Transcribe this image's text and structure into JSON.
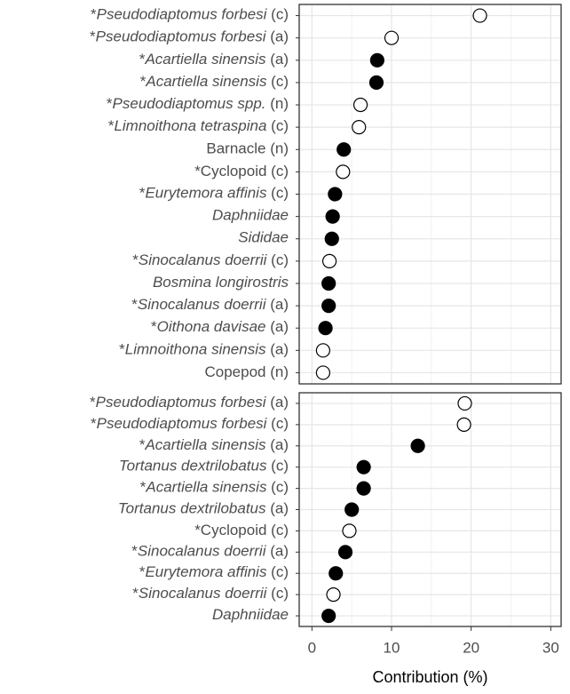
{
  "chart_data": [
    {
      "type": "dot",
      "categories": [
        "*Pseudodiaptomus forbesi (c)",
        "*Pseudodiaptomus forbesi (a)",
        "*Acartiella sinensis (a)",
        "*Acartiella sinensis (c)",
        "*Pseudodiaptomus spp. (n)",
        "*Limnoithona tetraspina (c)",
        "Barnacle (n)",
        "*Cyclopoid (c)",
        "*Eurytemora affinis (c)",
        "Daphniidae",
        "Sididae",
        "*Sinocalanus doerrii (c)",
        "Bosmina longirostris",
        "*Sinocalanus doerrii (a)",
        "*Oithona davisae (a)",
        "*Limnoithona sinensis (a)",
        "Copepod (n)"
      ],
      "italic": [
        true,
        true,
        true,
        true,
        true,
        true,
        false,
        false,
        true,
        true,
        true,
        true,
        true,
        true,
        true,
        true,
        false
      ],
      "values": [
        21.1,
        10.0,
        8.2,
        8.1,
        6.1,
        5.9,
        4.0,
        3.9,
        2.9,
        2.6,
        2.5,
        2.2,
        2.1,
        2.1,
        1.7,
        1.4,
        1.4
      ],
      "colors": [
        "#ffffff",
        "#ffffff",
        "#000000",
        "#000000",
        "#ffffff",
        "#ffffff",
        "#000000",
        "#ffffff",
        "#000000",
        "#000000",
        "#000000",
        "#ffffff",
        "#000000",
        "#000000",
        "#000000",
        "#ffffff",
        "#ffffff"
      ],
      "xlim": [
        -1.6,
        31.3
      ],
      "xticks": [
        0,
        10,
        20,
        30
      ],
      "grid": true
    },
    {
      "type": "dot",
      "categories": [
        "*Pseudodiaptomus forbesi (a)",
        "*Pseudodiaptomus forbesi (c)",
        "*Acartiella sinensis (a)",
        "Tortanus dextrilobatus (c)",
        "*Acartiella sinensis (c)",
        "Tortanus dextrilobatus (a)",
        "*Cyclopoid (c)",
        "*Sinocalanus doerrii (a)",
        "*Eurytemora affinis (c)",
        "*Sinocalanus doerrii (c)",
        "Daphniidae"
      ],
      "italic": [
        true,
        true,
        true,
        true,
        true,
        true,
        false,
        true,
        true,
        true,
        true
      ],
      "values": [
        19.2,
        19.1,
        13.3,
        6.5,
        6.5,
        5.0,
        4.7,
        4.2,
        3.0,
        2.7,
        2.1
      ],
      "colors": [
        "#ffffff",
        "#ffffff",
        "#000000",
        "#000000",
        "#000000",
        "#000000",
        "#ffffff",
        "#000000",
        "#000000",
        "#ffffff",
        "#000000"
      ],
      "xlim": [
        -1.6,
        31.3
      ],
      "xticks": [
        0,
        10,
        20,
        30
      ],
      "grid": true,
      "xlabel": "Contribution (%)"
    }
  ]
}
